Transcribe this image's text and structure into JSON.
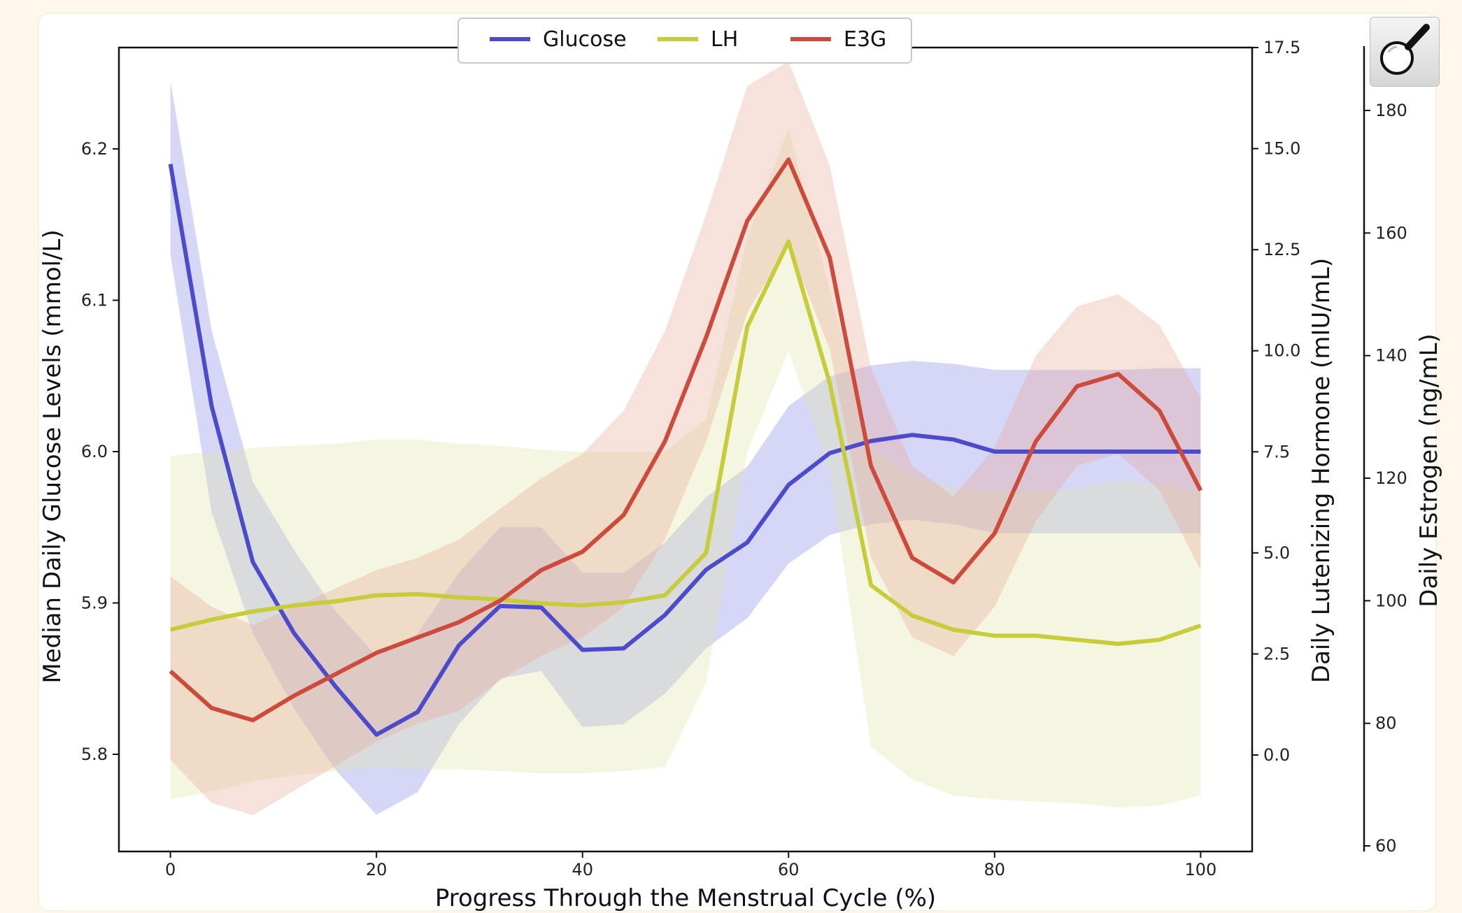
{
  "chart_data": {
    "type": "line",
    "xlabel": "Progress Through the Menstrual Cycle (%)",
    "xlim": [
      -5,
      105
    ],
    "xticks": [
      0,
      20,
      40,
      60,
      80,
      100
    ],
    "grid": false,
    "legend_position": "top-center",
    "axes": [
      {
        "id": "glucose",
        "side": "left",
        "label": "Median Daily Glucose Levels (mmol/L)",
        "ylim": [
          5.74,
          6.26
        ],
        "ticks": [
          "5.8",
          "5.9",
          "6.0",
          "6.1",
          "6.2"
        ]
      },
      {
        "id": "lh",
        "side": "right",
        "label": "Daily Lutenizing Hormone (mIU/mL)",
        "ylim": [
          -2.4,
          17.5
        ],
        "ticks": [
          "0.0",
          "2.5",
          "5.0",
          "7.5",
          "10.0",
          "12.5",
          "15.0",
          "17.5"
        ]
      },
      {
        "id": "e3g",
        "side": "right-outer",
        "label": "Daily Estrogen (ng/mL)",
        "ylim": [
          58,
          187
        ],
        "ticks": [
          "60",
          "80",
          "100",
          "120",
          "140",
          "160",
          "180"
        ]
      }
    ],
    "x": [
      0,
      4,
      8,
      12,
      16,
      20,
      24,
      28,
      32,
      36,
      40,
      44,
      48,
      52,
      56,
      60,
      64,
      68,
      72,
      76,
      80,
      84,
      88,
      92,
      96,
      100
    ],
    "series": [
      {
        "name": "Glucose",
        "axis": "glucose",
        "color": "#4b4bcc",
        "band_color": "#8a8ae8",
        "values": [
          6.19,
          6.03,
          5.927,
          5.88,
          5.845,
          5.813,
          5.828,
          5.872,
          5.898,
          5.897,
          5.869,
          5.87,
          5.892,
          5.922,
          5.94,
          5.978,
          5.999,
          6.007,
          6.011,
          6.008,
          6.0,
          6.0,
          6.0,
          6.0,
          6.0,
          6.0
        ],
        "lower": [
          6.13,
          5.96,
          5.88,
          5.83,
          5.79,
          5.76,
          5.775,
          5.82,
          5.85,
          5.855,
          5.818,
          5.82,
          5.84,
          5.87,
          5.89,
          5.926,
          5.945,
          5.952,
          5.955,
          5.952,
          5.946,
          5.946,
          5.946,
          5.946,
          5.946,
          5.946
        ],
        "upper": [
          6.245,
          6.08,
          5.98,
          5.935,
          5.895,
          5.865,
          5.88,
          5.92,
          5.95,
          5.95,
          5.92,
          5.92,
          5.94,
          5.97,
          5.99,
          6.03,
          6.05,
          6.057,
          6.06,
          6.058,
          6.054,
          6.054,
          6.054,
          6.054,
          6.055,
          6.055
        ]
      },
      {
        "name": "LH",
        "axis": "lh",
        "color": "#c7cc3a",
        "band_color": "#e3e6a8",
        "values": [
          3.1,
          3.35,
          3.55,
          3.7,
          3.8,
          3.95,
          3.98,
          3.9,
          3.85,
          3.75,
          3.7,
          3.78,
          3.95,
          5.0,
          10.6,
          12.7,
          9.2,
          4.2,
          3.45,
          3.1,
          2.95,
          2.95,
          2.85,
          2.75,
          2.85,
          3.2
        ],
        "lower": [
          -1.1,
          -0.9,
          -0.65,
          -0.5,
          -0.4,
          -0.3,
          -0.35,
          -0.35,
          -0.4,
          -0.45,
          -0.45,
          -0.4,
          -0.3,
          1.8,
          7.5,
          10.0,
          7.0,
          0.2,
          -0.6,
          -1.0,
          -1.1,
          -1.15,
          -1.2,
          -1.3,
          -1.25,
          -1.0
        ],
        "upper": [
          7.4,
          7.5,
          7.6,
          7.65,
          7.7,
          7.8,
          7.8,
          7.7,
          7.65,
          7.55,
          7.5,
          7.5,
          7.5,
          8.3,
          12.8,
          15.5,
          11.5,
          7.6,
          6.9,
          6.6,
          6.5,
          6.5,
          6.6,
          6.8,
          6.7,
          6.5
        ]
      },
      {
        "name": "E3G",
        "axis": "e3g",
        "color": "#cc4b3c",
        "band_color": "#e8a898",
        "values": [
          88.5,
          82.5,
          80.5,
          84.5,
          88,
          91.5,
          94,
          96.5,
          100,
          105,
          108,
          114,
          126,
          143,
          162,
          172,
          156,
          122,
          107,
          103,
          111,
          126,
          135,
          137,
          131,
          118
        ],
        "lower": [
          74,
          67,
          65,
          69,
          73,
          77,
          80,
          82,
          87,
          91,
          94,
          99,
          110,
          126,
          147,
          158,
          141,
          107,
          94,
          91,
          99,
          113,
          122,
          124,
          118,
          105
        ],
        "upper": [
          104,
          99,
          96,
          99,
          102,
          105,
          107,
          110,
          115,
          120,
          124,
          131,
          144,
          163,
          184,
          188,
          171,
          138,
          122,
          117,
          125,
          140,
          148,
          150,
          145,
          133
        ]
      }
    ]
  }
}
